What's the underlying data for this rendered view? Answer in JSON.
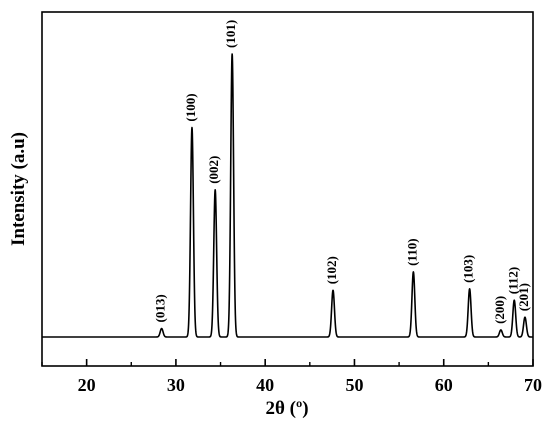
{
  "chart_data": {
    "type": "line",
    "title": "",
    "xlabel": "2θ (º)",
    "ylabel": "Intensity (a.u)",
    "xlim": [
      15,
      70
    ],
    "ylim": [
      0,
      100
    ],
    "x_ticks": [
      20,
      30,
      40,
      50,
      60,
      70
    ],
    "y_ticks_shown": false,
    "grid": false,
    "legend": "none",
    "series": [
      {
        "color": "#000000",
        "baseline": 0,
        "peaks": [
          {
            "label": "(013)",
            "x": 28.4,
            "y": 3.0
          },
          {
            "label": "(100)",
            "x": 31.8,
            "y": 74.0
          },
          {
            "label": "(002)",
            "x": 34.4,
            "y": 52.0
          },
          {
            "label": "(101)",
            "x": 36.3,
            "y": 100.0
          },
          {
            "label": "(102)",
            "x": 47.6,
            "y": 16.5
          },
          {
            "label": "(110)",
            "x": 56.6,
            "y": 23.0
          },
          {
            "label": "(103)",
            "x": 62.9,
            "y": 17.0
          },
          {
            "label": "(200)",
            "x": 66.4,
            "y": 2.5
          },
          {
            "label": "(112)",
            "x": 67.9,
            "y": 13.0
          },
          {
            "label": "(201)",
            "x": 69.1,
            "y": 7.0
          }
        ]
      }
    ]
  }
}
